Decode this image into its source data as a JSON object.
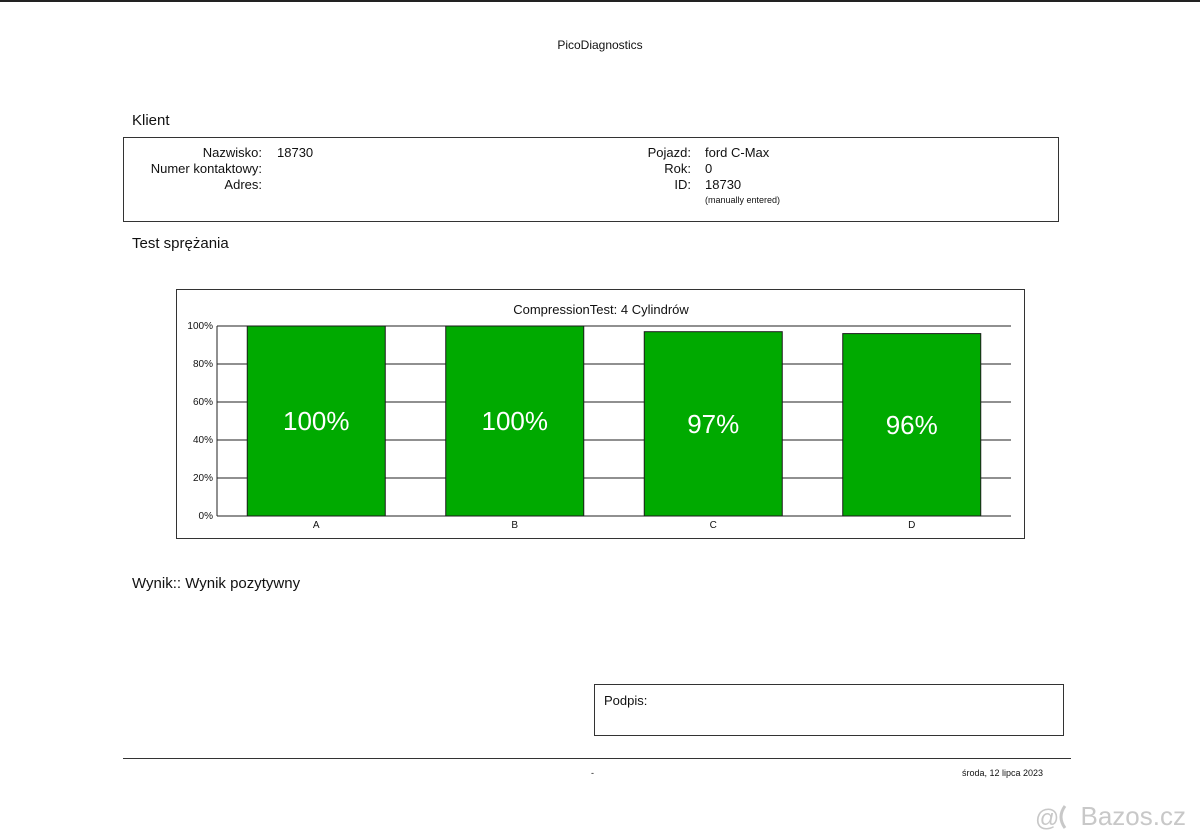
{
  "header": {
    "app_title": "PicoDiagnostics"
  },
  "client": {
    "section_title": "Klient",
    "left": {
      "name_label": "Nazwisko:",
      "name_value": "18730",
      "contact_label": "Numer kontaktowy:",
      "contact_value": "",
      "address_label": "Adres:",
      "address_value": ""
    },
    "right": {
      "vehicle_label": "Pojazd:",
      "vehicle_value": "ford C-Max",
      "year_label": "Rok:",
      "year_value": "0",
      "id_label": "ID:",
      "id_value": "18730",
      "id_note": "(manually entered)"
    }
  },
  "test": {
    "section_title": "Test sprężania"
  },
  "chart_data": {
    "type": "bar",
    "title": "CompressionTest: 4 Cylindrów",
    "categories": [
      "A",
      "B",
      "C",
      "D"
    ],
    "values": [
      100,
      100,
      97,
      96
    ],
    "value_labels": [
      "100%",
      "100%",
      "97%",
      "96%"
    ],
    "ylim": [
      0,
      100
    ],
    "yticks": [
      0,
      20,
      40,
      60,
      80,
      100
    ],
    "ytick_labels": [
      "0%",
      "20%",
      "40%",
      "60%",
      "80%",
      "100%"
    ],
    "xlabel": "",
    "ylabel": "",
    "grid": true,
    "bar_color": "#00aa00",
    "value_label_color": "#ffffff"
  },
  "result": {
    "text": "Wynik:: Wynik pozytywny"
  },
  "signature": {
    "label": "Podpis:"
  },
  "footer": {
    "center": "-",
    "date": "środa, 12 lipca 2023"
  },
  "watermark": {
    "text": "Bazos.cz"
  }
}
